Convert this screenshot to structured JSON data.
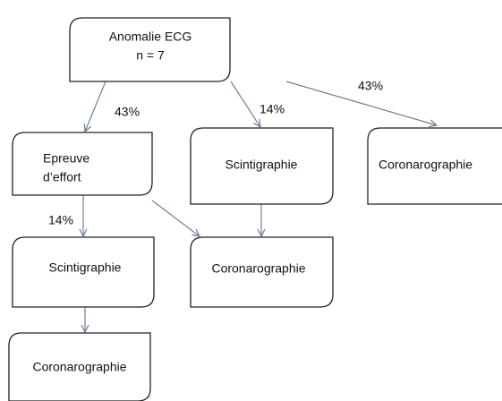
{
  "nodes": [
    {
      "lines": [
        "Anomalie ECG",
        "n = 7"
      ]
    },
    {
      "lines": [
        "Epreuve",
        "d’effort"
      ]
    },
    {
      "lines": [
        "Scintigraphie"
      ]
    },
    {
      "lines": [
        "Coronarographie"
      ]
    },
    {
      "lines": [
        "Scintigraphie"
      ]
    },
    {
      "lines": [
        "Coronarographie"
      ]
    },
    {
      "lines": [
        "Coronarographie"
      ]
    }
  ],
  "edge_labels": [
    "43%",
    "14%",
    "43%",
    "14%"
  ]
}
